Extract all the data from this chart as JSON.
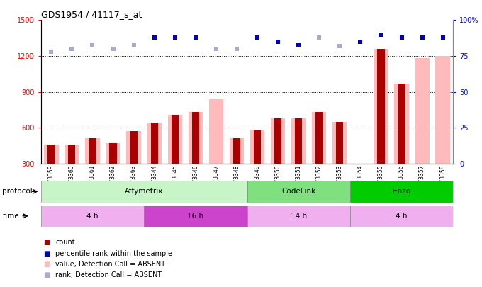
{
  "title": "GDS1954 / 41117_s_at",
  "samples": [
    "GSM73359",
    "GSM73360",
    "GSM73361",
    "GSM73362",
    "GSM73363",
    "GSM73344",
    "GSM73345",
    "GSM73346",
    "GSM73347",
    "GSM73348",
    "GSM73349",
    "GSM73350",
    "GSM73351",
    "GSM73352",
    "GSM73353",
    "GSM73354",
    "GSM73355",
    "GSM73356",
    "GSM73357",
    "GSM73358"
  ],
  "count_values": [
    460,
    460,
    510,
    470,
    570,
    640,
    710,
    730,
    null,
    510,
    580,
    680,
    680,
    730,
    650,
    null,
    1260,
    970,
    null,
    null
  ],
  "value_absent": [
    460,
    460,
    510,
    470,
    570,
    640,
    710,
    730,
    840,
    510,
    580,
    680,
    680,
    730,
    650,
    null,
    1260,
    970,
    1185,
    1200
  ],
  "percentile_rank": [
    78,
    80,
    83,
    80,
    83,
    88,
    88,
    88,
    80,
    80,
    88,
    85,
    83,
    88,
    82,
    85,
    90,
    88,
    88,
    88
  ],
  "dark_blue_indices": [
    5,
    6,
    7,
    10,
    11,
    12,
    15,
    16,
    17,
    18,
    19
  ],
  "light_blue_indices": [
    0,
    1,
    2,
    3,
    4,
    8,
    9,
    13,
    14
  ],
  "ylim_left": [
    300,
    1500
  ],
  "ylim_right": [
    0,
    100
  ],
  "yticks_left": [
    300,
    600,
    900,
    1200,
    1500
  ],
  "yticks_right": [
    0,
    25,
    50,
    75,
    100
  ],
  "protocol_groups": [
    {
      "label": "Affymetrix",
      "start": 0,
      "end": 9,
      "color": "#c8f5c8"
    },
    {
      "label": "CodeLink",
      "start": 10,
      "end": 14,
      "color": "#80e080"
    },
    {
      "label": "Enzo",
      "start": 15,
      "end": 19,
      "color": "#00cc00"
    }
  ],
  "time_groups": [
    {
      "label": "4 h",
      "start": 0,
      "end": 4,
      "color": "#f0b0f0"
    },
    {
      "label": "16 h",
      "start": 5,
      "end": 9,
      "color": "#cc44cc"
    },
    {
      "label": "14 h",
      "start": 10,
      "end": 14,
      "color": "#f0b0f0"
    },
    {
      "label": "4 h",
      "start": 15,
      "end": 19,
      "color": "#f0b0f0"
    }
  ],
  "color_count": "#aa0000",
  "color_value_absent": "#ffbbbb",
  "color_rank_dark": "#0000bb",
  "color_rank_light": "#aaaacc",
  "bar_width": 0.7,
  "count_bar_width": 0.35,
  "marker_size": 4,
  "left_axis_color": "red",
  "right_axis_color": "blue",
  "grid_color": "black",
  "grid_ls": "dotted",
  "grid_lw": 0.7,
  "fig_bg": "#ffffff",
  "legend_items": [
    {
      "label": "count",
      "color": "#aa0000"
    },
    {
      "label": "percentile rank within the sample",
      "color": "#0000bb"
    },
    {
      "label": "value, Detection Call = ABSENT",
      "color": "#ffbbbb"
    },
    {
      "label": "rank, Detection Call = ABSENT",
      "color": "#aaaacc"
    }
  ]
}
